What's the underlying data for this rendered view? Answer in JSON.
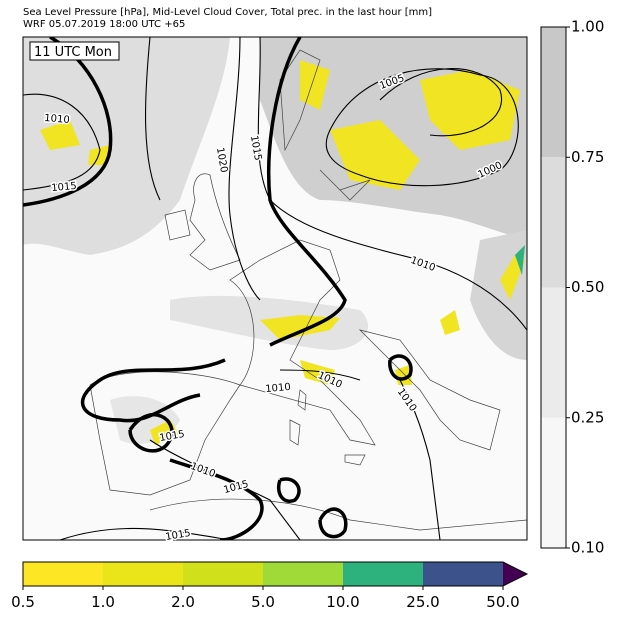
{
  "header": {
    "line1": "Sea Level Pressure [hPa], Mid-Level Cloud Cover, Total prec. in the last hour [mm]",
    "line2": "WRF 05.07.2019 18:00 UTC +65"
  },
  "map": {
    "time_label": "11 UTC Mon",
    "isobar_labels": [
      1005,
      1010,
      1015,
      1020,
      1015,
      1000,
      1010,
      1010,
      1010,
      1010,
      1015,
      1010,
      1015,
      1015
    ]
  },
  "cloud_colorbar": {
    "colors": [
      "#f7f7f7",
      "#ebebeb",
      "#dcdcdc",
      "#c8c8c8"
    ],
    "ticks": [
      {
        "value": 0.1,
        "label": "0.10"
      },
      {
        "value": 0.25,
        "label": "0.25"
      },
      {
        "value": 0.5,
        "label": "0.50"
      },
      {
        "value": 0.75,
        "label": "0.75"
      },
      {
        "value": 1,
        "label": "1.00"
      }
    ]
  },
  "precip_colorbar": {
    "colors": [
      "#fde725",
      "#e9e51a",
      "#d0e11c",
      "#a0da39",
      "#2db27d",
      "#3b528b",
      "#440154"
    ],
    "ticks": [
      0.5,
      {
        "value": 1,
        "label": "1.0"
      },
      {
        "value": 2,
        "label": "2.0"
      },
      {
        "value": 5,
        "label": "5.0"
      },
      {
        "value": 10,
        "label": "10.0"
      },
      {
        "value": 25,
        "label": "25.0"
      },
      {
        "value": 50,
        "label": "50.0"
      }
    ]
  }
}
